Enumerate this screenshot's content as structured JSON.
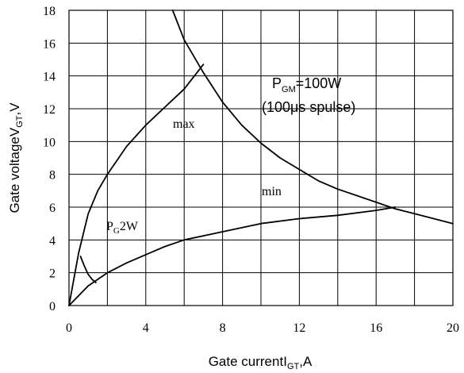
{
  "chart_data": {
    "type": "line",
    "xlabel": {
      "main": "Gate current",
      "sub_symbol": "I",
      "sub": "GT",
      "unit": ",A"
    },
    "ylabel": {
      "main": "Gate voltage",
      "sub_symbol": "V",
      "sub": "GT",
      "unit": ",V"
    },
    "xlim": [
      0,
      20
    ],
    "ylim": [
      0,
      18
    ],
    "xticks": [
      0,
      4,
      8,
      12,
      16,
      20
    ],
    "yticks": [
      0,
      2,
      4,
      6,
      8,
      10,
      12,
      14,
      16,
      18
    ],
    "grid": true,
    "series": [
      {
        "name": "max",
        "x": [
          0,
          0.5,
          1,
          1.5,
          2,
          3,
          4,
          5,
          6,
          7
        ],
        "y": [
          0,
          3.2,
          5.6,
          7.0,
          8.0,
          9.7,
          11.0,
          12.1,
          13.2,
          14.7
        ]
      },
      {
        "name": "min",
        "x": [
          0,
          0.5,
          1,
          2,
          3,
          4,
          5,
          6,
          8,
          10,
          12,
          14,
          16,
          17
        ],
        "y": [
          0,
          0.6,
          1.2,
          2.0,
          2.6,
          3.1,
          3.6,
          4.0,
          4.5,
          5.0,
          5.3,
          5.5,
          5.8,
          6.0
        ]
      },
      {
        "name": "P_GM=100W",
        "x": [
          5.4,
          6,
          7,
          8,
          9,
          10,
          11,
          12,
          13,
          14,
          15,
          16,
          17,
          18,
          19,
          20
        ],
        "y": [
          18,
          16.2,
          14.2,
          12.4,
          11.0,
          9.9,
          9.0,
          8.3,
          7.6,
          7.1,
          6.7,
          6.3,
          5.9,
          5.6,
          5.3,
          5.0
        ]
      },
      {
        "name": "P_G2W",
        "x": [
          0.6,
          0.8,
          1.0,
          1.2,
          1.4
        ],
        "y": [
          3.0,
          2.4,
          1.9,
          1.6,
          1.4
        ]
      }
    ],
    "annotations": [
      {
        "id": "max",
        "text": "max"
      },
      {
        "id": "min",
        "text": "min"
      },
      {
        "id": "pgm",
        "symbol": "P",
        "sub": "GM",
        "text": "=100W"
      },
      {
        "id": "pulse",
        "text": "(100μs spulse)"
      },
      {
        "id": "pg",
        "symbol": "P",
        "sub": "G",
        "text": "2W"
      }
    ]
  }
}
